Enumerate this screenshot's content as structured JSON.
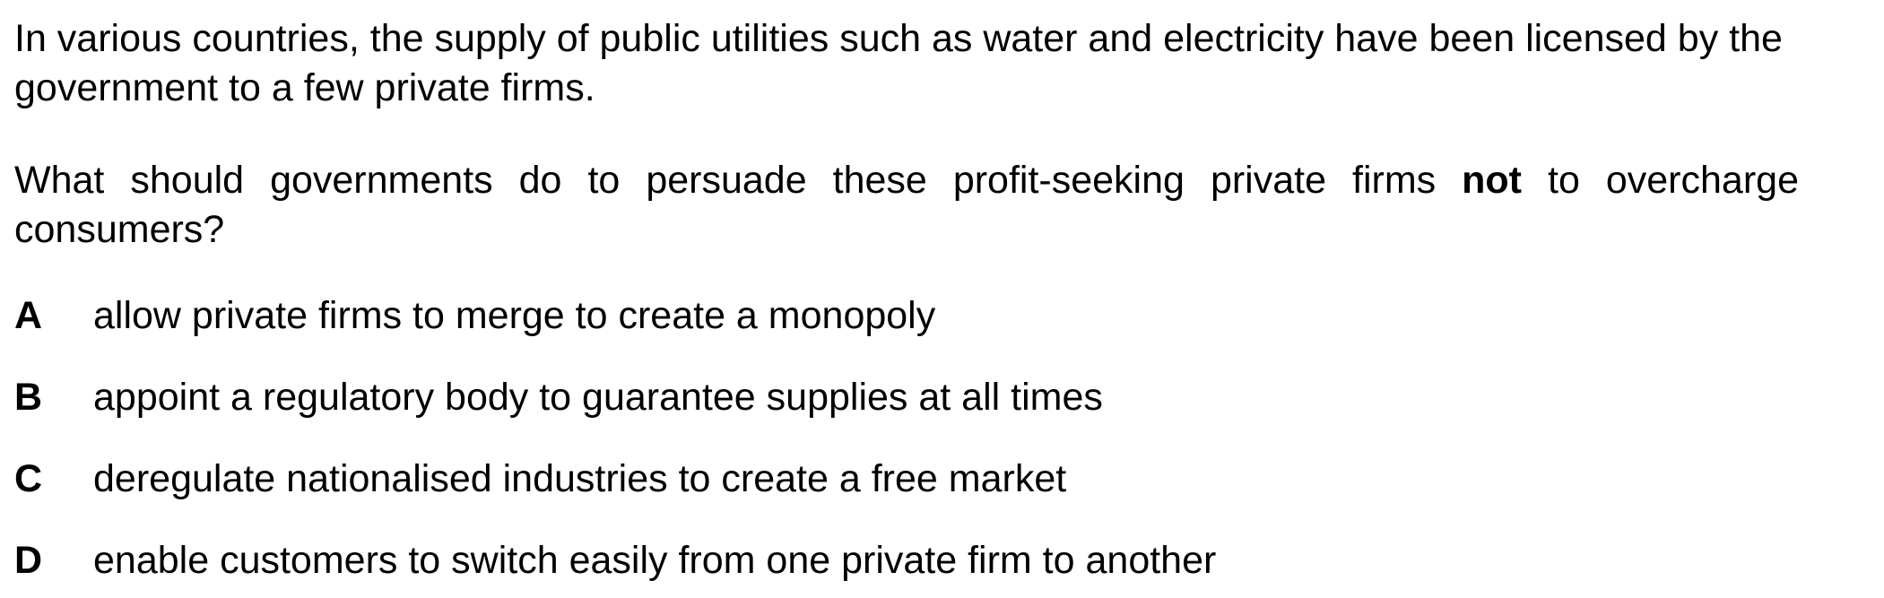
{
  "intro": "In various countries, the supply of public utilities such as water and electricity have been licensed by the government to a few private firms.",
  "question": {
    "before": "What should governments do to persuade these profit-seeking private firms ",
    "emphasis": "not",
    "after": " to overcharge consumers?"
  },
  "options": [
    {
      "letter": "A",
      "text": "allow private firms to merge to create a monopoly"
    },
    {
      "letter": "B",
      "text": "appoint a regulatory body to guarantee supplies at all times"
    },
    {
      "letter": "C",
      "text": "deregulate nationalised industries to create a free market"
    },
    {
      "letter": "D",
      "text": "enable customers to switch easily from one private firm to another"
    }
  ]
}
